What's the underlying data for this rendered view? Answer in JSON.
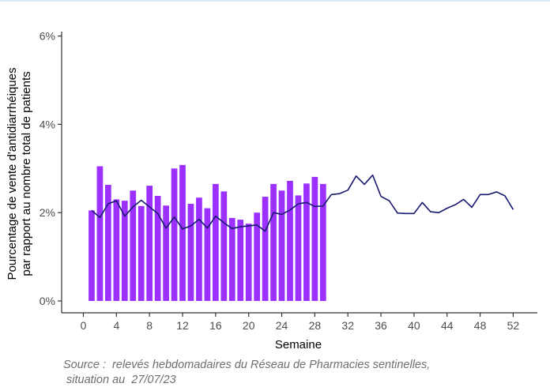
{
  "chart_data": {
    "type": "bar",
    "xlabel": "Semaine",
    "ylabel_lines": [
      "Pourcentage de vente d'antidiarrhéiques",
      "par rapport au nombre total de patients"
    ],
    "x_ticks": [
      0,
      4,
      8,
      12,
      16,
      20,
      24,
      28,
      32,
      36,
      40,
      44,
      48,
      52
    ],
    "y_ticks": [
      0,
      2,
      4,
      6
    ],
    "y_tick_labels": [
      "0%",
      "2%",
      "4%",
      "6%"
    ],
    "xlim": [
      -1.5,
      53.5
    ],
    "ylim": [
      0,
      6.1
    ],
    "grid": false,
    "colors": {
      "bars": "#9b30ff",
      "line": "#191970",
      "axis": "#333333"
    },
    "series": [
      {
        "type": "bar",
        "x": [
          1,
          2,
          3,
          4,
          5,
          6,
          7,
          8,
          9,
          10,
          11,
          12,
          13,
          14,
          15,
          16,
          17,
          18,
          19,
          20,
          21,
          22,
          23,
          24,
          25,
          26,
          27,
          28,
          29
        ],
        "values": [
          2.05,
          3.05,
          2.63,
          2.3,
          2.27,
          2.5,
          2.15,
          2.61,
          2.38,
          2.16,
          3.0,
          3.08,
          2.2,
          2.34,
          2.1,
          2.65,
          2.48,
          1.88,
          1.84,
          1.75,
          2.0,
          2.36,
          2.65,
          2.5,
          2.72,
          2.39,
          2.66,
          2.81,
          2.65
        ]
      },
      {
        "type": "line",
        "x": [
          1,
          2,
          3,
          4,
          5,
          6,
          7,
          8,
          9,
          10,
          11,
          12,
          13,
          14,
          15,
          16,
          17,
          18,
          19,
          20,
          21,
          22,
          23,
          24,
          25,
          26,
          27,
          28,
          29,
          30,
          31,
          32,
          33,
          34,
          35,
          36,
          37,
          38,
          39,
          40,
          41,
          42,
          43,
          44,
          45,
          46,
          47,
          48,
          49,
          50,
          51,
          52
        ],
        "values": [
          2.05,
          1.89,
          2.2,
          2.27,
          1.92,
          2.13,
          2.28,
          2.13,
          1.98,
          1.65,
          1.9,
          1.63,
          1.7,
          1.85,
          1.65,
          1.92,
          1.77,
          1.64,
          1.68,
          1.7,
          1.72,
          1.58,
          2.0,
          1.96,
          2.06,
          2.2,
          2.23,
          2.14,
          2.15,
          2.41,
          2.43,
          2.51,
          2.83,
          2.64,
          2.85,
          2.37,
          2.27,
          1.99,
          1.98,
          1.98,
          2.23,
          2.02,
          2.0,
          2.1,
          2.18,
          2.3,
          2.12,
          2.41,
          2.41,
          2.47,
          2.38,
          2.07
        ]
      }
    ]
  },
  "source": {
    "line1": "Source :  relevés hebdomadaires du Réseau de Pharmacies sentinelles,",
    "line2": " situation au  27/07/23"
  }
}
